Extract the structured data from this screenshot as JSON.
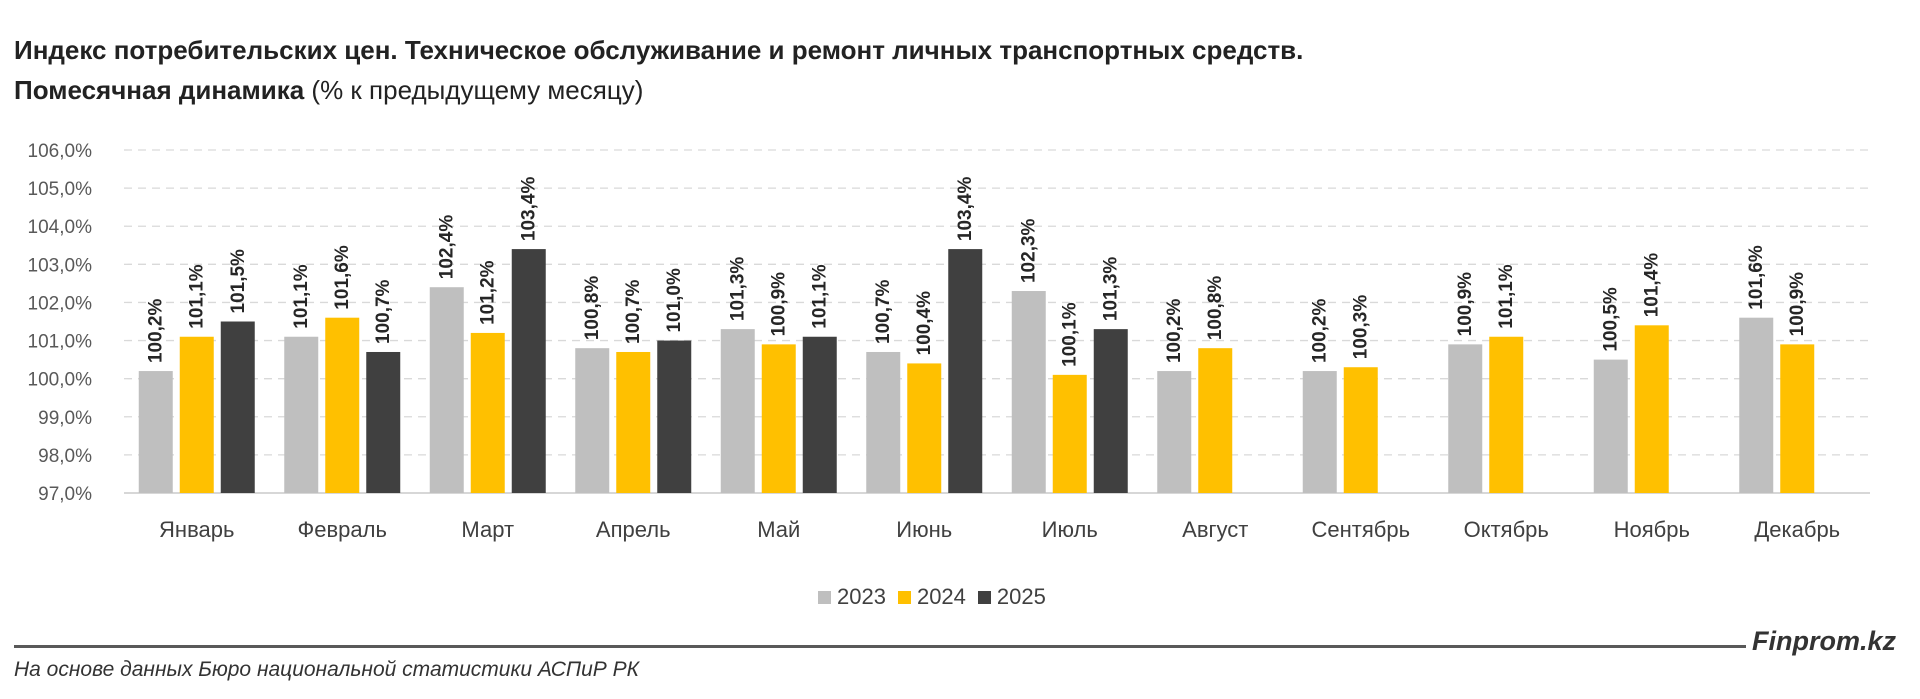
{
  "title_line1": "Индекс потребительских цен. Техническое обслуживание и ремонт личных транспортных средств.",
  "title_line2_bold": "Помесячная динамика",
  "title_line2_rest": " (% к предыдущему месяцу)",
  "brand": "Finprom.kz",
  "source": "На основе данных Бюро национальной статистики АСПиР РК",
  "colors": {
    "2023": "#bfbfbf",
    "2024": "#ffc000",
    "2025": "#404040"
  },
  "chart_data": {
    "type": "bar",
    "categories": [
      "Январь",
      "Февраль",
      "Март",
      "Апрель",
      "Май",
      "Июнь",
      "Июль",
      "Август",
      "Сентябрь",
      "Октябрь",
      "Ноябрь",
      "Декабрь"
    ],
    "series": [
      {
        "name": "2023",
        "values": [
          100.2,
          101.1,
          102.4,
          100.8,
          101.3,
          100.7,
          102.3,
          100.2,
          100.2,
          100.9,
          100.5,
          101.6
        ]
      },
      {
        "name": "2024",
        "values": [
          101.1,
          101.6,
          101.2,
          100.7,
          100.9,
          100.4,
          100.1,
          100.8,
          100.3,
          101.1,
          101.4,
          100.9
        ]
      },
      {
        "name": "2025",
        "values": [
          101.5,
          100.7,
          103.4,
          101.0,
          101.1,
          103.4,
          101.3,
          null,
          null,
          null,
          null,
          null
        ]
      }
    ],
    "ylim": [
      97.0,
      106.0
    ],
    "yticks": [
      "97,0%",
      "98,0%",
      "99,0%",
      "100,0%",
      "101,0%",
      "102,0%",
      "103,0%",
      "104,0%",
      "105,0%",
      "106,0%"
    ],
    "grid": true,
    "legend": "bottom"
  }
}
